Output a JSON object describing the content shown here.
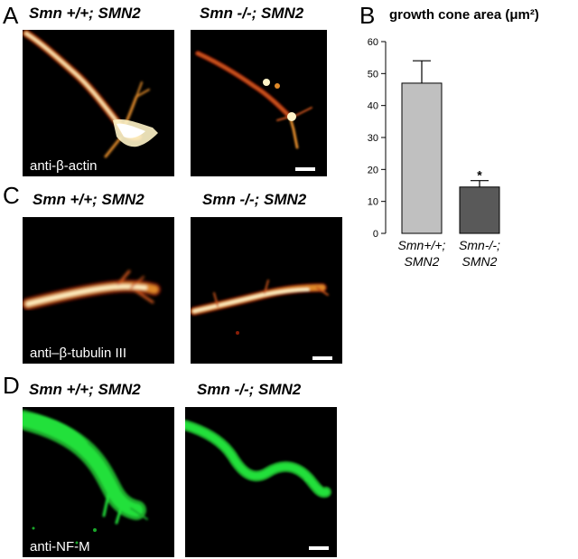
{
  "figure": {
    "panels": {
      "A": {
        "letter": "A",
        "left_title": "Smn +/+; SMN2",
        "right_title": "Smn -/-; SMN2",
        "stain": "anti-β-actin"
      },
      "B": {
        "letter": "B"
      },
      "C": {
        "letter": "C",
        "left_title": "Smn +/+; SMN2",
        "right_title": "Smn -/-; SMN2",
        "stain": "anti–β-tubulin III"
      },
      "D": {
        "letter": "D",
        "left_title": "Smn +/+; SMN2",
        "right_title": "Smn -/-; SMN2",
        "stain": "anti-NF-M"
      }
    },
    "colors": {
      "hot_core": "#fff4c8",
      "hot_mid": "#e08a2a",
      "hot_edge": "#8a1e08",
      "nfm_green": "#22e03a",
      "bar_wt": "#c0c0c0",
      "bar_ko": "#595959"
    }
  },
  "chart_data": {
    "type": "bar",
    "title": "growth cone area (μm²)",
    "categories": [
      "Smn+/+; SMN2",
      "Smn-/-; SMN2"
    ],
    "category_lines": [
      [
        "Smn+/+;",
        "SMN2"
      ],
      [
        "Smn-/-;",
        "SMN2"
      ]
    ],
    "values": [
      47,
      14.5
    ],
    "errors": [
      7,
      2
    ],
    "significance": [
      "",
      "*"
    ],
    "ylim": [
      0,
      60
    ],
    "yticks": [
      0,
      10,
      20,
      30,
      40,
      50,
      60
    ],
    "xlabel": "",
    "ylabel": "",
    "grid": false,
    "colors": [
      "#c0c0c0",
      "#595959"
    ]
  }
}
